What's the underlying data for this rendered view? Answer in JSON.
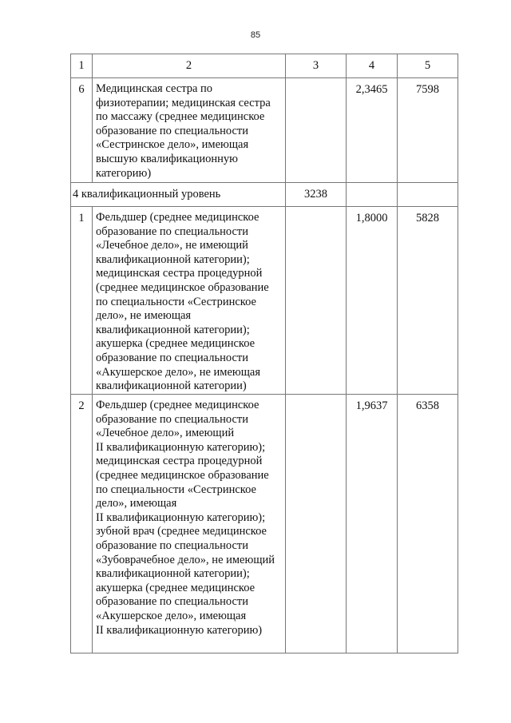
{
  "page_number": "85",
  "table": {
    "header": [
      "1",
      "2",
      "3",
      "4",
      "5"
    ],
    "rows": [
      {
        "no": "6",
        "text": "Медицинская сестра по\nфизиотерапии; медицинская сестра\nпо массажу (среднее медицинское\nобразование по специальности\n«Сестринское дело», имеющая\nвысшую квалификационную\nкатегорию)",
        "col3": "",
        "coef": "2,3465",
        "salary": "7598"
      },
      {
        "no": "1",
        "text": "Фельдшер (среднее медицинское\nобразование по специальности\n«Лечебное дело», не имеющий\nквалификационной категории);\nмедицинская сестра процедурной\n(среднее медицинское образование\nпо специальности «Сестринское\nдело», не имеющая\nквалификационной категории);\nакушерка (среднее медицинское\nобразование по специальности\n«Акушерское дело», не имеющая\nквалификационной категории)",
        "col3": "",
        "coef": "1,8000",
        "salary": "5828"
      },
      {
        "no": "2",
        "text": "Фельдшер (среднее медицинское\nобразование по специальности\n«Лечебное дело», имеющий\nII квалификационную категорию);\nмедицинская сестра процедурной\n(среднее медицинское образование\nпо специальности «Сестринское\nдело», имеющая\nII квалификационную категорию);\nзубной врач (среднее медицинское\nобразование по специальности\n«Зубоврачебное дело», не имеющий\nквалификационной категории);\nакушерка (среднее медицинское\nобразование по специальности\n«Акушерское дело», имеющая\nII квалификационную категорию)",
        "col3": "",
        "coef": "1,9637",
        "salary": "6358"
      }
    ],
    "level": {
      "label": "4 квалификационный уровень",
      "col3": "3238",
      "col4": "",
      "col5": ""
    }
  }
}
